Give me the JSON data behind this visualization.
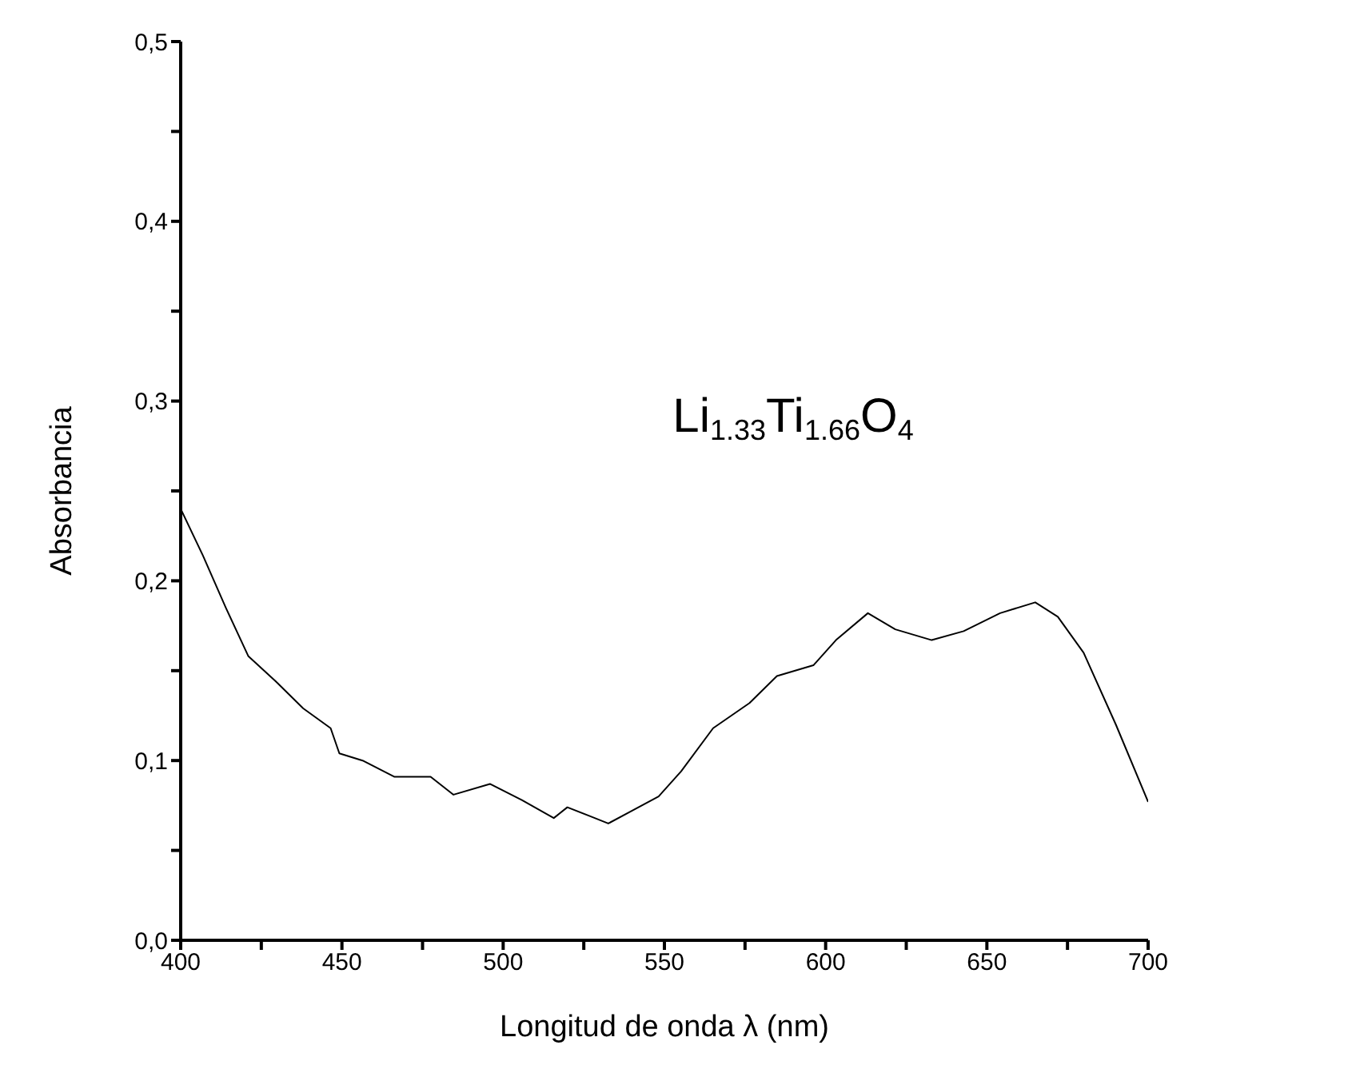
{
  "chart_data": {
    "type": "line",
    "xlabel": "Longitud de onda λ (nm)",
    "ylabel": "Absorbancia",
    "annotations": [
      "Li$_{1.33}$Ti$_{1.66}$O$_{4}$"
    ],
    "x": [
      400,
      406.9,
      414,
      421,
      429.5,
      438,
      446.5,
      449.2,
      456.4,
      466.2,
      477.5,
      484.6,
      495.9,
      505.8,
      515.7,
      519.9,
      527,
      532.6,
      548.2,
      555.2,
      565.1,
      576.4,
      584.9,
      596.2,
      603.2,
      613.1,
      621.6,
      632.9,
      642.8,
      654.1,
      665,
      672,
      680,
      690,
      700
    ],
    "series": [
      {
        "color": "#000000",
        "values": [
          0.24,
          0.214,
          0.185,
          0.158,
          0.144,
          0.129,
          0.118,
          0.104,
          0.1,
          0.091,
          0.091,
          0.081,
          0.087,
          0.078,
          0.068,
          0.074,
          0.069,
          0.065,
          0.08,
          0.094,
          0.118,
          0.132,
          0.147,
          0.153,
          0.167,
          0.182,
          0.173,
          0.167,
          0.172,
          0.182,
          0.188,
          0.18,
          0.16,
          0.12,
          0.077
        ]
      }
    ],
    "xlim": [
      400,
      700
    ],
    "xticks": [
      400,
      {
        "value": 425,
        "label": null
      },
      450,
      {
        "value": 475,
        "label": null
      },
      500,
      {
        "value": 525,
        "label": null
      },
      550,
      {
        "value": 575,
        "label": null
      },
      600,
      {
        "value": 625,
        "label": null
      },
      650,
      {
        "value": 675,
        "label": null
      },
      700
    ],
    "ylim": [
      0,
      0.5
    ],
    "yticks": [
      {
        "value": 0,
        "label": "0,0"
      },
      {
        "value": 0.05,
        "label": null
      },
      {
        "value": 0.1,
        "label": "0,1"
      },
      {
        "value": 0.15,
        "label": null
      },
      {
        "value": 0.2,
        "label": "0,2"
      },
      {
        "value": 0.25,
        "label": null
      },
      {
        "value": 0.3,
        "label": "0,3"
      },
      {
        "value": 0.35,
        "label": null
      },
      {
        "value": 0.4,
        "label": "0,4"
      },
      {
        "value": 0.45,
        "label": null
      },
      {
        "value": 0.5,
        "label": "0,5"
      }
    ],
    "grid": false,
    "legend": false,
    "marker": "none",
    "line_style": "solid"
  }
}
